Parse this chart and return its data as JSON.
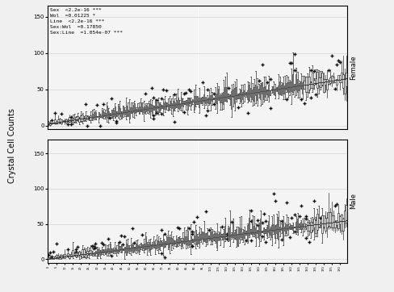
{
  "n_lines": 185,
  "female_seed": 42,
  "male_seed": 123,
  "annotation_text": "Sex  <2.2e-16 ***\nWol  =0.01225 *\nLine  <2.2e-16 ***\nSex:Wol  =0.17850\nSex:Line  =1.054e-07 ***",
  "ylabel": "Crystal Cell Counts",
  "strip_female": "Female",
  "strip_male": "Male",
  "bg_color": "#f0f0f0",
  "panel_bg": "#ffffff",
  "strip_bg": "#d3d3d3",
  "box_color": "#ffffff",
  "box_edge": "#333333",
  "whisker_color": "#333333",
  "median_color": "#333333",
  "flier_color": "#111111",
  "grid_color": "#cccccc",
  "yticks_female": [
    0,
    50,
    100,
    150
  ],
  "yticks_male": [
    0,
    50,
    100,
    150
  ],
  "ylim_female": [
    -5,
    165
  ],
  "ylim_male": [
    -5,
    170
  ]
}
